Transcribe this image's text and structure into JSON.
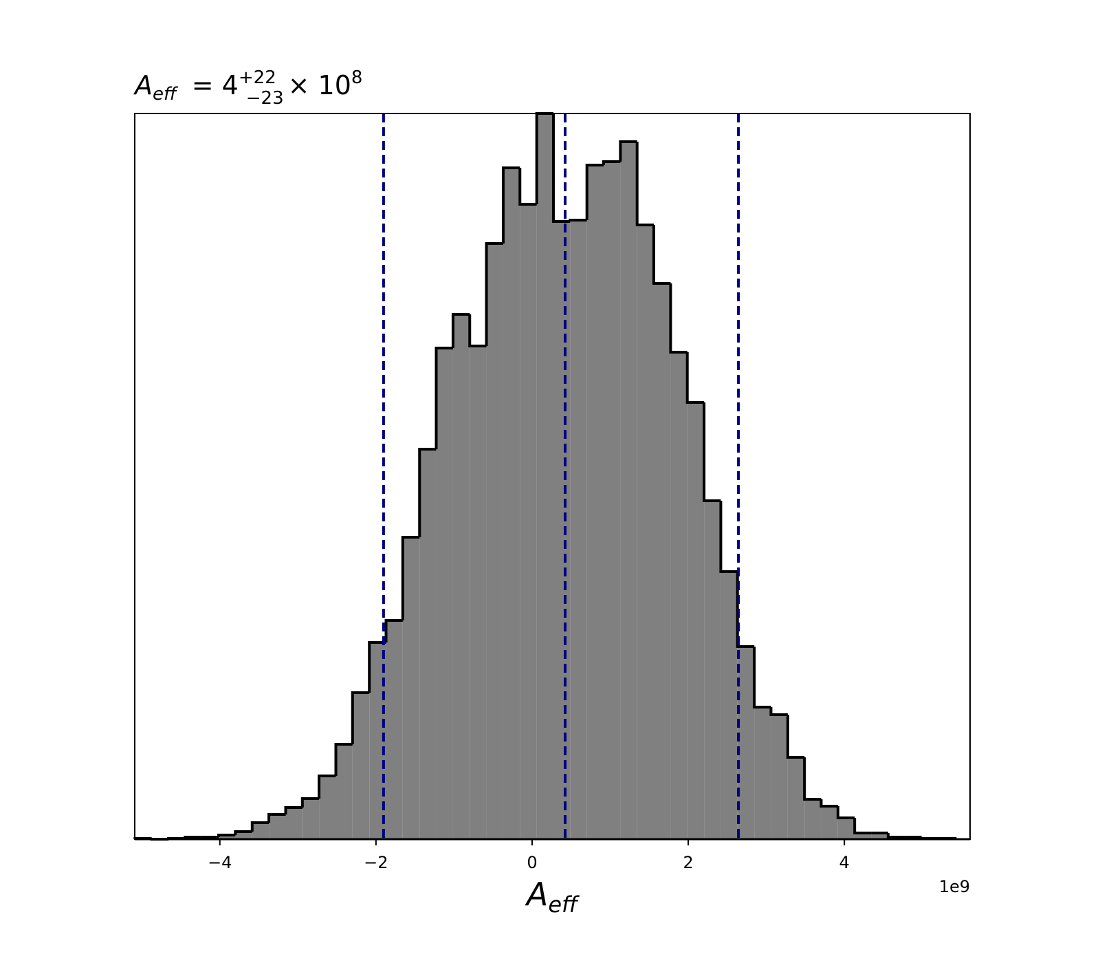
{
  "chart_data": {
    "type": "histogram",
    "title": {
      "symbol": "A",
      "subscript": "eff",
      "equals": "= 4",
      "upper": "+22",
      "lower": "−23",
      "times": "× 10",
      "exponent": "8"
    },
    "xlabel": {
      "symbol": "A",
      "subscript": "eff"
    },
    "x_offset_label": "1e9",
    "bins": [
      -5.087,
      -4.873,
      -4.658,
      -4.444,
      -4.229,
      -4.015,
      -3.801,
      -3.586,
      -3.372,
      -3.157,
      -2.943,
      -2.729,
      -2.514,
      -2.3,
      -2.085,
      -1.871,
      -1.657,
      -1.442,
      -1.228,
      -1.013,
      -0.799,
      -0.585,
      -0.37,
      -0.156,
      0.059,
      0.273,
      0.487,
      0.702,
      0.916,
      1.131,
      1.345,
      1.559,
      1.774,
      1.988,
      2.203,
      2.417,
      2.631,
      2.846,
      3.06,
      3.275,
      3.489,
      3.703,
      3.918,
      4.132,
      4.347,
      4.561,
      4.775,
      4.99,
      5.204,
      5.419
    ],
    "values": [
      1,
      0,
      1,
      3,
      3,
      6,
      11,
      24,
      36,
      46,
      59,
      92,
      138,
      213,
      286,
      318,
      439,
      567,
      714,
      763,
      717,
      866,
      976,
      923,
      1055,
      898,
      900,
      980,
      985,
      1014,
      893,
      808,
      708,
      635,
      492,
      389,
      280,
      192,
      181,
      119,
      58,
      48,
      31,
      9,
      9,
      3,
      3,
      1,
      1
    ],
    "color": "#808080",
    "edge_color": "#000000",
    "vlines": [
      -1.903,
      0.423,
      2.643
    ],
    "vline_color": "#000080",
    "xlim": [
      -5.09,
      5.61
    ],
    "ylim": [
      0,
      1055
    ],
    "xticks": [
      {
        "value": -4,
        "label": "−4"
      },
      {
        "value": -2,
        "label": "−2"
      },
      0,
      2,
      4
    ]
  }
}
